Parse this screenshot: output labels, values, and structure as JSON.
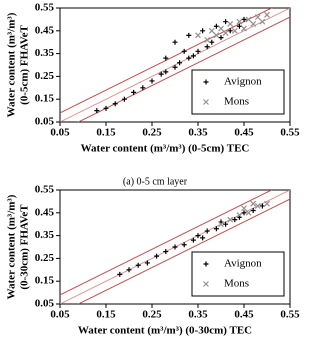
{
  "chart_data": [
    {
      "type": "scatter",
      "xlabel": "Water content (m³/m³)  (0-5cm) TEC",
      "ylabel": [
        "Water content (m³/m³)",
        "(0-5cm) FHAVeT"
      ],
      "caption": "(a) 0-5 cm layer",
      "xlim": [
        0.05,
        0.55
      ],
      "ylim": [
        0.05,
        0.55
      ],
      "xticks": [
        0.05,
        0.15,
        0.25,
        0.35,
        0.45,
        0.55
      ],
      "yticks": [
        0.05,
        0.15,
        0.25,
        0.35,
        0.45,
        0.55
      ],
      "legend": "lower right",
      "reference_lines": [
        {
          "intercept": -0.04,
          "color": "#c0504d"
        },
        {
          "intercept": 0,
          "color": "#d99694"
        },
        {
          "intercept": 0.04,
          "color": "#c0504d"
        }
      ],
      "series": [
        {
          "name": "Avignon",
          "color": "#000000",
          "marker": "plus",
          "x": [
            0.13,
            0.15,
            0.17,
            0.19,
            0.21,
            0.23,
            0.25,
            0.27,
            0.28,
            0.3,
            0.31,
            0.33,
            0.34,
            0.35,
            0.37,
            0.38,
            0.4,
            0.42,
            0.44,
            0.45,
            0.3,
            0.33,
            0.36,
            0.39,
            0.41,
            0.28,
            0.32
          ],
          "values": [
            0.1,
            0.11,
            0.13,
            0.15,
            0.18,
            0.2,
            0.23,
            0.26,
            0.27,
            0.29,
            0.31,
            0.33,
            0.34,
            0.36,
            0.38,
            0.4,
            0.42,
            0.45,
            0.47,
            0.5,
            0.4,
            0.43,
            0.45,
            0.47,
            0.49,
            0.33,
            0.36
          ]
        },
        {
          "name": "Mons",
          "color": "#909090",
          "marker": "cross",
          "x": [
            0.35,
            0.38,
            0.4,
            0.42,
            0.44,
            0.46,
            0.48,
            0.5,
            0.37,
            0.41,
            0.45,
            0.47,
            0.49,
            0.43,
            0.39
          ],
          "values": [
            0.43,
            0.45,
            0.46,
            0.48,
            0.49,
            0.5,
            0.51,
            0.52,
            0.41,
            0.44,
            0.46,
            0.48,
            0.49,
            0.45,
            0.43
          ]
        }
      ]
    },
    {
      "type": "scatter",
      "xlabel": "Water content (m³/m³)  (0-30cm) TEC",
      "ylabel": [
        "Water content (m³/m³)",
        "(0-30cm) FHAVeT"
      ],
      "xlim": [
        0.05,
        0.55
      ],
      "ylim": [
        0.05,
        0.55
      ],
      "xticks": [
        0.05,
        0.15,
        0.25,
        0.35,
        0.45,
        0.55
      ],
      "yticks": [
        0.05,
        0.15,
        0.25,
        0.35,
        0.45,
        0.55
      ],
      "legend": "lower right",
      "reference_lines": [
        {
          "intercept": -0.04,
          "color": "#c0504d"
        },
        {
          "intercept": 0,
          "color": "#d99694"
        },
        {
          "intercept": 0.04,
          "color": "#c0504d"
        }
      ],
      "series": [
        {
          "name": "Avignon",
          "color": "#000000",
          "marker": "plus",
          "x": [
            0.18,
            0.2,
            0.22,
            0.24,
            0.26,
            0.28,
            0.3,
            0.32,
            0.34,
            0.35,
            0.37,
            0.39,
            0.41,
            0.43,
            0.45,
            0.47,
            0.49,
            0.36,
            0.4,
            0.44
          ],
          "values": [
            0.18,
            0.2,
            0.22,
            0.23,
            0.26,
            0.28,
            0.3,
            0.31,
            0.33,
            0.35,
            0.37,
            0.38,
            0.4,
            0.42,
            0.45,
            0.46,
            0.48,
            0.34,
            0.41,
            0.43
          ]
        },
        {
          "name": "Mons",
          "color": "#909090",
          "marker": "cross",
          "x": [
            0.4,
            0.42,
            0.44,
            0.46,
            0.48,
            0.5,
            0.45,
            0.47
          ],
          "values": [
            0.4,
            0.42,
            0.44,
            0.45,
            0.48,
            0.49,
            0.47,
            0.49
          ]
        }
      ]
    }
  ]
}
